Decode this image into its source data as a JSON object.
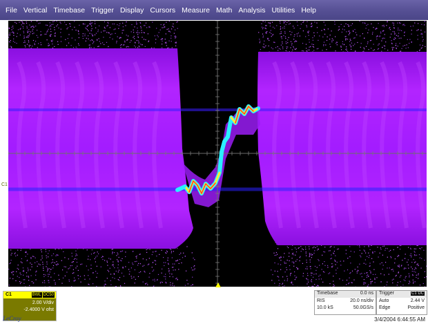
{
  "menu": [
    "File",
    "Vertical",
    "Timebase",
    "Trigger",
    "Display",
    "Cursors",
    "Measure",
    "Math",
    "Analysis",
    "Utilities",
    "Help"
  ],
  "channel_marker": "C1",
  "ch1": {
    "name": "C1",
    "tags": [
      "BWL",
      "DC50"
    ],
    "vdiv": "2.00 V/div",
    "offset": "-2.4000 V ofst"
  },
  "timebase": {
    "header_label": "Timebase",
    "header_value": "0.0 ns",
    "row1_label": "RIS",
    "row1_value": "20.0 ns/div",
    "row2_label": "10.0 kS",
    "row2_value": "50.0GS/s"
  },
  "trigger": {
    "header_label": "Trigger",
    "tag": "C1 DC",
    "row1_label": "Auto",
    "row1_value": "2.44 V",
    "row2_label": "Edge",
    "row2_value": "Positive"
  },
  "timestamp": "3/4/2004 6:44:55 AM",
  "brand": "LeCroy",
  "colors": {
    "menubar": "#554f93",
    "persistence": "#a21dff",
    "trace_hot": "#ff3a2a",
    "trace_mid": "#33e8ff",
    "ch1_yellow": "#ffff00"
  },
  "icons": {
    "trigger_position": "triangle-up-icon"
  }
}
